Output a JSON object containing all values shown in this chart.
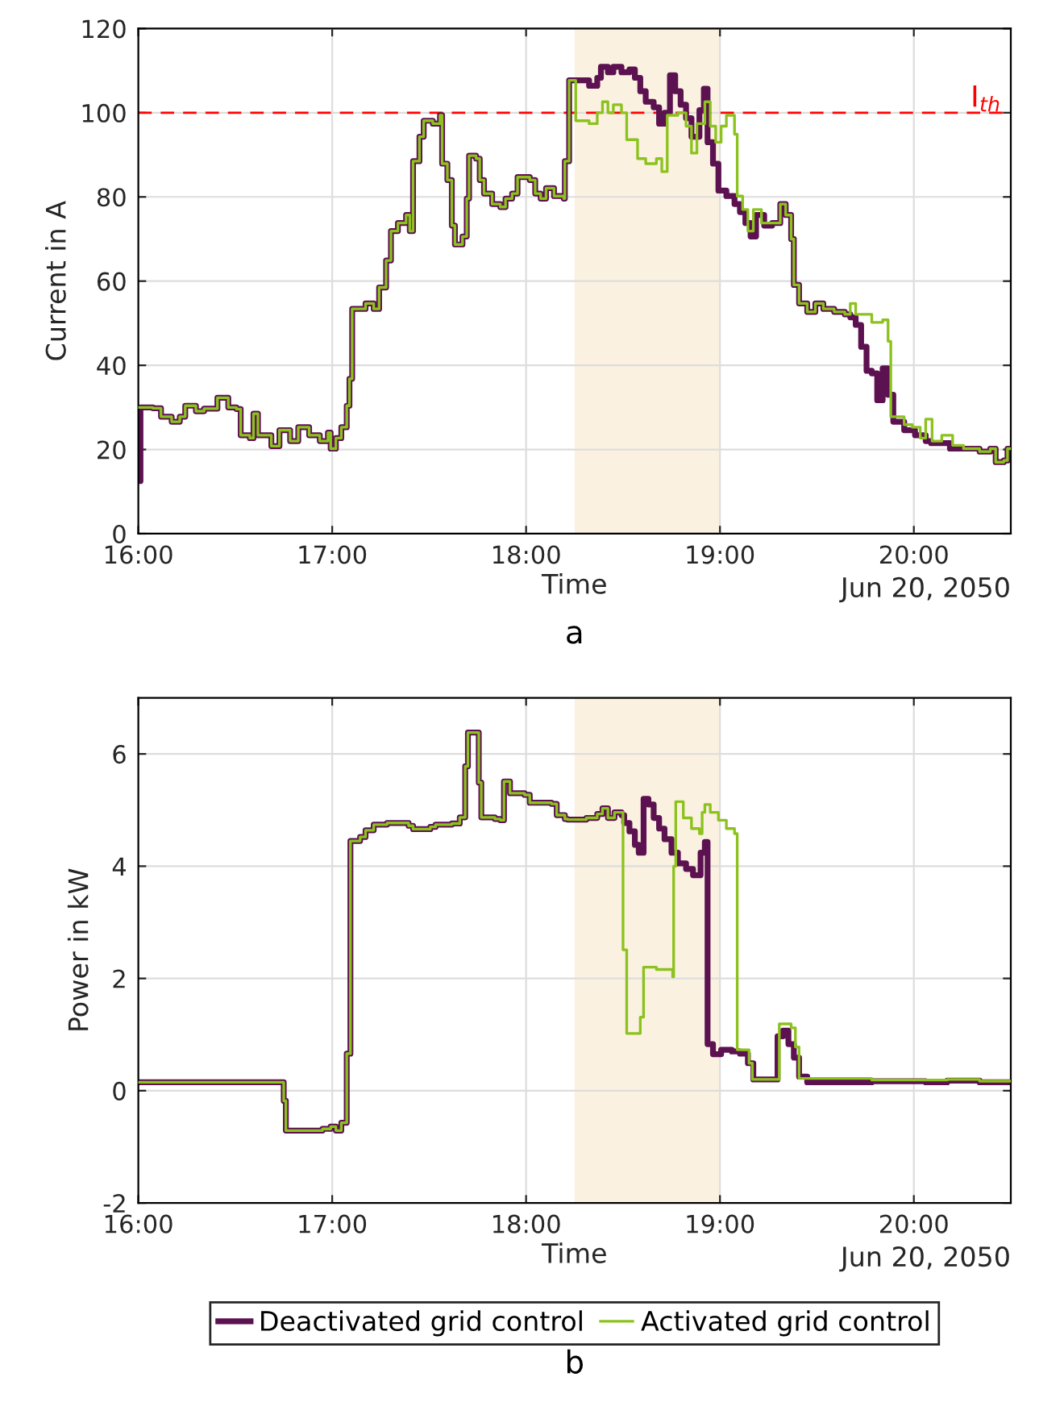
{
  "chart_data": [
    {
      "type": "step",
      "title": "a",
      "xlabel": "Time",
      "ylabel": "Current in A",
      "annotations": [
        "Jun 20, 2050"
      ],
      "xlim": [
        16,
        20.5
      ],
      "xticks": [
        {
          "value": 16,
          "label": "16:00"
        },
        {
          "value": 17,
          "label": "17:00"
        },
        {
          "value": 18,
          "label": "18:00"
        },
        {
          "value": 19,
          "label": "19:00"
        },
        {
          "value": 20,
          "label": "20:00"
        }
      ],
      "ylim": [
        0,
        120
      ],
      "yticks": [
        0,
        20,
        40,
        60,
        80,
        100,
        120
      ],
      "grid": true,
      "ref_lines": [
        {
          "axis": "y",
          "value": 100,
          "label": "I$_{th}$",
          "color": "#ff0000",
          "line_style": "dashed"
        }
      ],
      "bands": [
        {
          "axis": "x",
          "from": 18.25,
          "to": 19.0,
          "color": "#faf1e0"
        }
      ],
      "series": [
        {
          "color": "#5c1150",
          "x": [
            16.0,
            16.011,
            16.075,
            16.117,
            16.172,
            16.214,
            16.242,
            16.297,
            16.339,
            16.408,
            16.464,
            16.506,
            16.528,
            16.575,
            16.594,
            16.617,
            16.686,
            16.728,
            16.783,
            16.825,
            16.881,
            16.936,
            16.978,
            16.992,
            17.019,
            17.047,
            17.075,
            17.089,
            17.103,
            17.172,
            17.214,
            17.242,
            17.278,
            17.303,
            17.339,
            17.381,
            17.4,
            17.417,
            17.45,
            17.472,
            17.519,
            17.556,
            17.567,
            17.594,
            17.617,
            17.633,
            17.672,
            17.694,
            17.706,
            17.742,
            17.761,
            17.783,
            17.825,
            17.867,
            17.894,
            17.928,
            17.956,
            18.019,
            18.047,
            18.075,
            18.103,
            18.144,
            18.194,
            18.2,
            18.222,
            18.325,
            18.367,
            18.386,
            18.422,
            18.45,
            18.492,
            18.533,
            18.561,
            18.589,
            18.617,
            18.658,
            18.686,
            18.714,
            18.742,
            18.769,
            18.797,
            18.825,
            18.853,
            18.894,
            18.917,
            18.936,
            18.964,
            18.992,
            19.033,
            19.075,
            19.103,
            19.131,
            19.158,
            19.186,
            19.228,
            19.269,
            19.311,
            19.339,
            19.367,
            19.381,
            19.408,
            19.45,
            19.492,
            19.533,
            19.589,
            19.644,
            19.672,
            19.7,
            19.728,
            19.756,
            19.783,
            19.811,
            19.839,
            19.867,
            19.894,
            19.95,
            20.006,
            20.061,
            20.089,
            20.144,
            20.186,
            20.256,
            20.339,
            20.394,
            20.422,
            20.464,
            20.483,
            20.5
          ],
          "values": [
            12.5,
            30,
            29.8,
            27.8,
            26.6,
            27.8,
            30.4,
            29.1,
            29.7,
            32.3,
            30.0,
            29.6,
            23.4,
            22.7,
            28.5,
            23.4,
            20.8,
            24.6,
            22.0,
            25.3,
            23.4,
            22.0,
            24.0,
            20.2,
            22.7,
            25.3,
            30.4,
            36.8,
            53.4,
            54.7,
            53.4,
            58.5,
            64.9,
            71.9,
            73.8,
            75.7,
            71.9,
            88.5,
            94.3,
            98.1,
            97.4,
            99.4,
            87.9,
            84.0,
            73.2,
            68.7,
            70.6,
            79.6,
            89.8,
            89.1,
            84.0,
            80.8,
            78.3,
            77.6,
            79.6,
            80.8,
            84.7,
            84.0,
            80.8,
            79.6,
            82.1,
            80.2,
            79.6,
            88.5,
            107.7,
            106.4,
            108.3,
            110.9,
            109.6,
            110.9,
            109.6,
            110.3,
            108.3,
            105.1,
            102.6,
            101.3,
            97.4,
            100.0,
            108.9,
            105.1,
            101.9,
            98.7,
            94.3,
            100.6,
            105.7,
            93.0,
            87.9,
            81.5,
            80.2,
            78.3,
            76.4,
            73.8,
            70.6,
            75.7,
            73.2,
            73.8,
            78.3,
            75.7,
            70.0,
            59.1,
            54.7,
            52.7,
            54.7,
            53.4,
            52.7,
            52.1,
            51.4,
            49.6,
            44.4,
            38.7,
            38.1,
            31.7,
            39.3,
            33.0,
            26.6,
            24.6,
            23.4,
            22.0,
            21.5,
            21.5,
            20.2,
            20.2,
            19.5,
            20.2,
            17.0,
            17.4,
            20.2,
            20.2
          ]
        },
        {
          "color": "#8cc21e",
          "x": [
            16.0,
            16.075,
            16.117,
            16.172,
            16.214,
            16.242,
            16.297,
            16.339,
            16.408,
            16.464,
            16.506,
            16.528,
            16.575,
            16.594,
            16.617,
            16.686,
            16.728,
            16.783,
            16.825,
            16.881,
            16.936,
            16.978,
            16.992,
            17.019,
            17.047,
            17.075,
            17.089,
            17.103,
            17.172,
            17.214,
            17.242,
            17.278,
            17.303,
            17.339,
            17.381,
            17.4,
            17.417,
            17.45,
            17.472,
            17.519,
            17.556,
            17.567,
            17.594,
            17.617,
            17.633,
            17.672,
            17.694,
            17.706,
            17.742,
            17.761,
            17.783,
            17.825,
            17.867,
            17.894,
            17.928,
            17.956,
            18.019,
            18.047,
            18.075,
            18.103,
            18.144,
            18.194,
            18.2,
            18.222,
            18.256,
            18.325,
            18.367,
            18.394,
            18.422,
            18.45,
            18.492,
            18.519,
            18.575,
            18.617,
            18.672,
            18.7,
            18.728,
            18.783,
            18.825,
            18.853,
            18.881,
            18.922,
            18.95,
            18.978,
            19.006,
            19.033,
            19.075,
            19.089,
            19.117,
            19.144,
            19.172,
            19.214,
            19.269,
            19.311,
            19.339,
            19.367,
            19.381,
            19.408,
            19.45,
            19.492,
            19.533,
            19.589,
            19.644,
            19.672,
            19.7,
            19.783,
            19.839,
            19.867,
            19.881,
            19.95,
            19.992,
            20.033,
            20.061,
            20.094,
            20.144,
            20.2,
            20.256,
            20.339,
            20.394,
            20.422,
            20.464,
            20.483,
            20.5
          ],
          "values": [
            30,
            29.8,
            27.8,
            26.6,
            27.8,
            30.4,
            29.1,
            29.7,
            32.3,
            30.0,
            29.6,
            23.4,
            22.7,
            28.5,
            23.4,
            20.8,
            24.6,
            22.0,
            25.3,
            23.4,
            22.0,
            24.0,
            20.2,
            22.7,
            25.3,
            30.4,
            36.8,
            53.4,
            54.7,
            53.4,
            58.5,
            64.9,
            71.9,
            73.8,
            75.7,
            71.9,
            88.5,
            94.3,
            98.1,
            97.4,
            99.4,
            87.9,
            84.0,
            73.2,
            68.7,
            70.6,
            79.6,
            89.8,
            89.1,
            84.0,
            80.8,
            78.3,
            77.6,
            79.6,
            80.8,
            84.7,
            84.0,
            80.8,
            79.6,
            82.1,
            80.2,
            79.6,
            88.5,
            107.7,
            98.1,
            97.4,
            100.0,
            102.6,
            100.0,
            101.9,
            100.0,
            93.6,
            89.1,
            87.9,
            89.1,
            86.0,
            99.4,
            100.0,
            96.8,
            90.4,
            97.4,
            102.6,
            96.8,
            93.0,
            96.8,
            99.4,
            94.9,
            80.2,
            77.0,
            71.9,
            77.0,
            73.8,
            73.8,
            78.3,
            75.7,
            70.0,
            59.1,
            54.7,
            52.7,
            54.7,
            53.4,
            52.7,
            52.1,
            54.7,
            52.1,
            50.2,
            50.8,
            45.7,
            27.8,
            25.9,
            25.3,
            22.7,
            27.2,
            22.0,
            23.4,
            21.0,
            20.2,
            19.5,
            20.2,
            17.0,
            17.4,
            20.2,
            20.2
          ]
        }
      ]
    },
    {
      "type": "step",
      "title": "b",
      "xlabel": "Time",
      "ylabel": "Power in kW",
      "annotations": [
        "Jun 20, 2050"
      ],
      "xlim": [
        16,
        20.5
      ],
      "xticks": [
        {
          "value": 16,
          "label": "16:00"
        },
        {
          "value": 17,
          "label": "17:00"
        },
        {
          "value": 18,
          "label": "18:00"
        },
        {
          "value": 19,
          "label": "19:00"
        },
        {
          "value": 20,
          "label": "20:00"
        }
      ],
      "ylim": [
        -2,
        7
      ],
      "yticks": [
        -2,
        0,
        2,
        4,
        6
      ],
      "grid": true,
      "legend": "bottom",
      "bands": [
        {
          "axis": "x",
          "from": 18.25,
          "to": 19.0,
          "color": "#faf1e0"
        }
      ],
      "series": [
        {
          "name": "Deactivated grid control",
          "color": "#5c1150",
          "x": [
            16.0,
            16.75,
            16.761,
            16.95,
            16.992,
            17.019,
            17.047,
            17.075,
            17.094,
            17.144,
            17.172,
            17.214,
            17.283,
            17.394,
            17.417,
            17.506,
            17.533,
            17.617,
            17.658,
            17.686,
            17.7,
            17.756,
            17.769,
            17.839,
            17.867,
            17.886,
            17.917,
            17.992,
            18.019,
            18.131,
            18.158,
            18.2,
            18.214,
            18.311,
            18.367,
            18.394,
            18.422,
            18.456,
            18.492,
            18.506,
            18.533,
            18.561,
            18.581,
            18.606,
            18.631,
            18.658,
            18.686,
            18.714,
            18.75,
            18.783,
            18.825,
            18.861,
            18.9,
            18.922,
            18.936,
            18.964,
            19.006,
            19.061,
            19.103,
            19.144,
            19.172,
            19.297,
            19.325,
            19.353,
            19.381,
            19.408,
            19.45,
            19.783,
            20.061,
            20.172,
            20.339,
            20.5
          ],
          "values": [
            0.15,
            -0.18,
            -0.71,
            -0.68,
            -0.64,
            -0.71,
            -0.57,
            0.66,
            4.45,
            4.52,
            4.64,
            4.74,
            4.77,
            4.72,
            4.66,
            4.7,
            4.74,
            4.76,
            4.87,
            5.78,
            6.38,
            5.49,
            4.87,
            4.84,
            4.82,
            5.51,
            5.3,
            5.27,
            5.13,
            5.11,
            4.91,
            4.84,
            4.83,
            4.86,
            4.93,
            5.03,
            4.86,
            4.96,
            4.91,
            4.77,
            4.62,
            4.38,
            4.24,
            5.2,
            5.1,
            4.86,
            4.67,
            4.48,
            4.24,
            4.05,
            3.95,
            3.84,
            4.24,
            4.43,
            0.83,
            0.65,
            0.73,
            0.7,
            0.66,
            0.49,
            0.2,
            0.97,
            1.07,
            0.83,
            0.59,
            0.25,
            0.15,
            0.17,
            0.15,
            0.18,
            0.15,
            0.15
          ]
        },
        {
          "name": "Activated grid control",
          "color": "#8cc21e",
          "x": [
            16.0,
            16.75,
            16.761,
            16.95,
            16.992,
            17.019,
            17.047,
            17.075,
            17.094,
            17.144,
            17.172,
            17.214,
            17.283,
            17.394,
            17.417,
            17.506,
            17.533,
            17.617,
            17.658,
            17.686,
            17.7,
            17.756,
            17.769,
            17.839,
            17.867,
            17.886,
            17.917,
            17.992,
            18.019,
            18.131,
            18.158,
            18.2,
            18.214,
            18.311,
            18.367,
            18.394,
            18.422,
            18.456,
            18.5,
            18.519,
            18.589,
            18.606,
            18.672,
            18.756,
            18.761,
            18.772,
            18.811,
            18.853,
            18.894,
            18.908,
            18.922,
            18.95,
            18.992,
            19.033,
            19.075,
            19.089,
            19.15,
            19.167,
            19.306,
            19.367,
            19.389,
            19.408,
            19.783,
            20.172,
            20.339,
            20.5
          ],
          "values": [
            0.15,
            -0.18,
            -0.71,
            -0.68,
            -0.64,
            -0.71,
            -0.57,
            0.66,
            4.45,
            4.52,
            4.64,
            4.74,
            4.77,
            4.72,
            4.66,
            4.7,
            4.74,
            4.76,
            4.87,
            5.78,
            6.38,
            5.49,
            4.87,
            4.84,
            4.82,
            5.51,
            5.3,
            5.27,
            5.13,
            5.11,
            4.91,
            4.84,
            4.83,
            4.86,
            4.93,
            5.03,
            4.86,
            4.96,
            2.51,
            1.02,
            1.31,
            2.2,
            2.16,
            2.03,
            4.0,
            5.15,
            4.86,
            4.67,
            4.58,
            4.96,
            5.1,
            4.96,
            4.82,
            4.67,
            4.58,
            0.73,
            0.49,
            0.2,
            1.19,
            1.12,
            0.78,
            0.22,
            0.19,
            0.2,
            0.17,
            0.17
          ]
        }
      ]
    }
  ]
}
